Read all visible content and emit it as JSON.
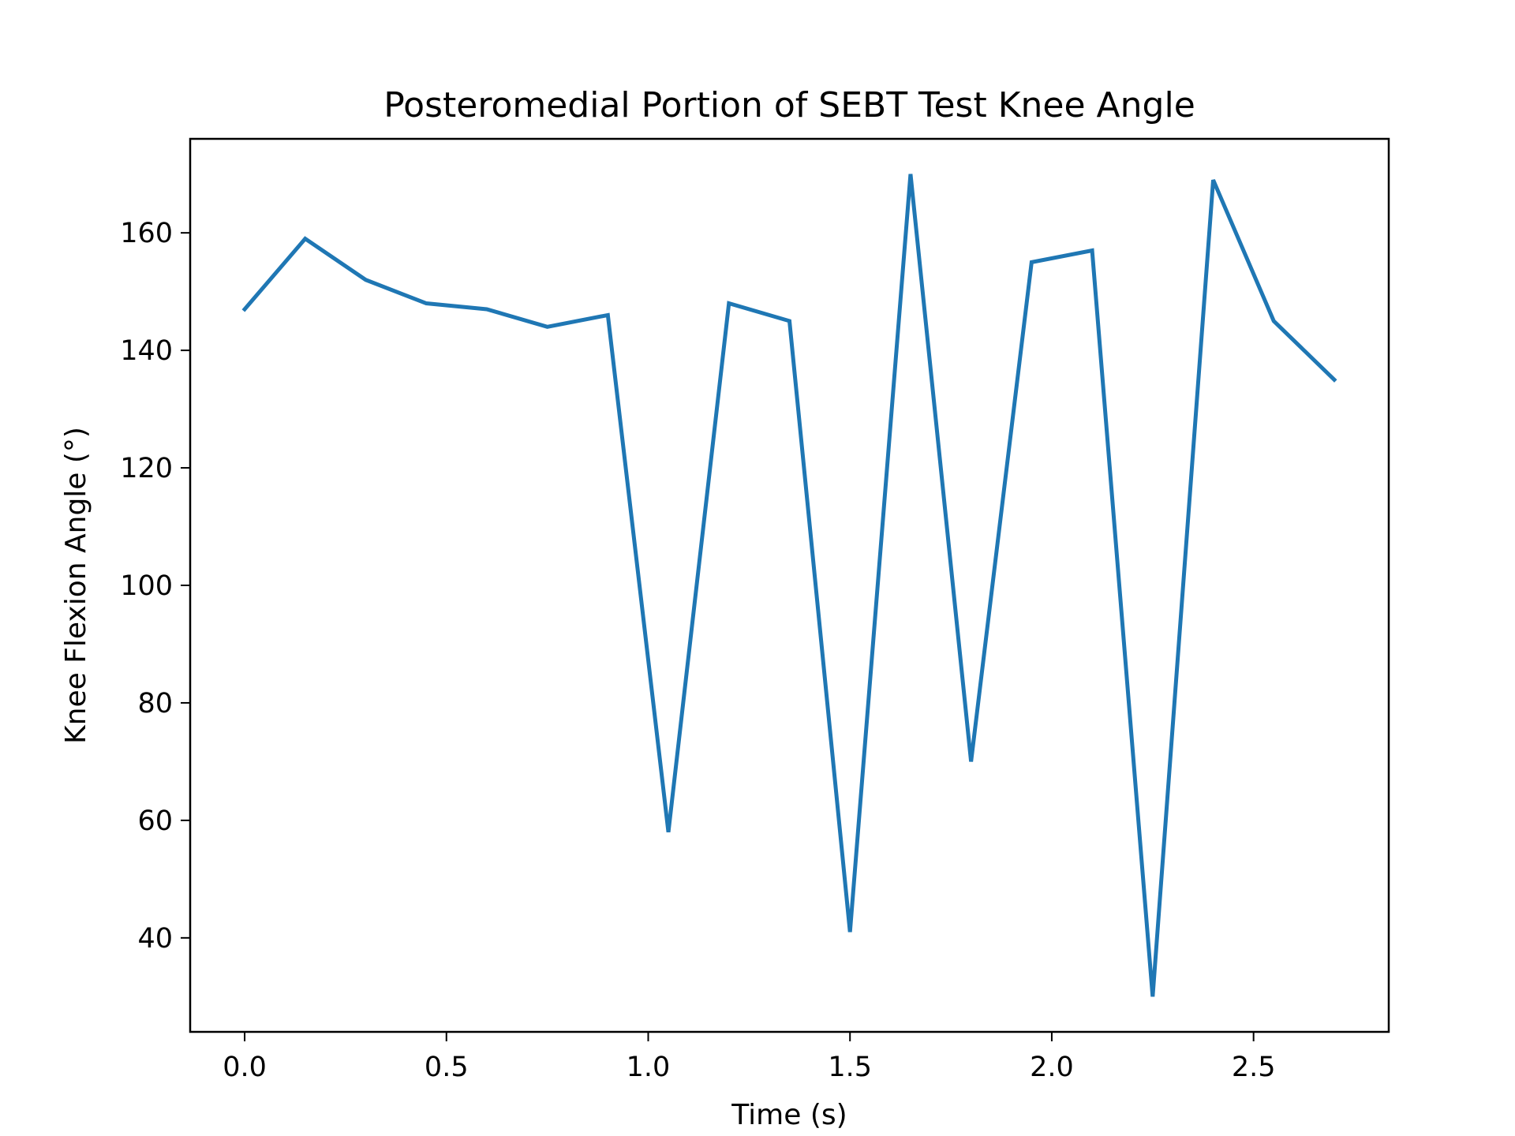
{
  "chart_data": {
    "type": "line",
    "title": "Posteromedial Portion of SEBT Test Knee Angle",
    "xlabel": "Time (s)",
    "ylabel": "Knee Flexion Angle (°)",
    "xlim": [
      -0.135,
      2.835
    ],
    "ylim": [
      24,
      176
    ],
    "xticks": [
      0.0,
      0.5,
      1.0,
      1.5,
      2.0,
      2.5
    ],
    "xtick_labels": [
      "0.0",
      "0.5",
      "1.0",
      "1.5",
      "2.0",
      "2.5"
    ],
    "yticks": [
      40,
      60,
      80,
      100,
      120,
      140,
      160
    ],
    "ytick_labels": [
      "40",
      "60",
      "80",
      "100",
      "120",
      "140",
      "160"
    ],
    "grid": false,
    "series": [
      {
        "color": "#1f77b4",
        "x": [
          0.0,
          0.15,
          0.3,
          0.45,
          0.6,
          0.75,
          0.9,
          1.05,
          1.2,
          1.35,
          1.5,
          1.65,
          1.8,
          1.95,
          2.1,
          2.25,
          2.4,
          2.55,
          2.7
        ],
        "values": [
          147,
          159,
          152,
          148,
          147,
          144,
          146,
          58,
          148,
          145,
          41,
          170,
          70,
          155,
          157,
          30,
          169,
          145,
          135
        ]
      }
    ]
  }
}
